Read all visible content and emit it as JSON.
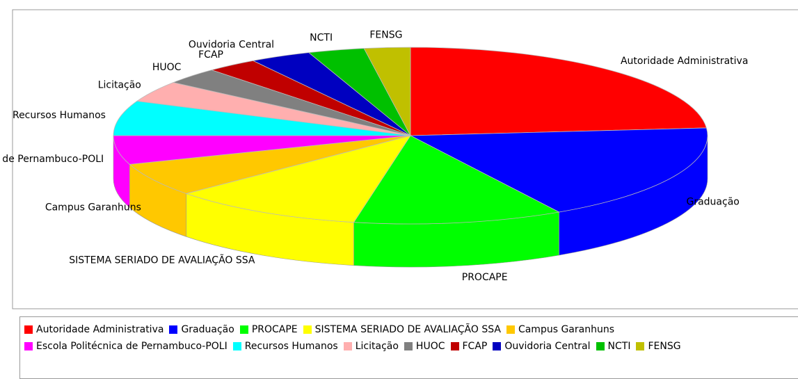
{
  "chart_data": {
    "type": "pie3d",
    "categories": [
      "Autoridade Administrativa",
      "Graduação",
      "PROCAPE",
      "SISTEMA SERIADO DE AVALIAÇÃO SSA",
      "Campus Garanhuns",
      "Escola Politécnica de Pernambuco-POLI",
      "Recursos Humanos",
      "Licitação",
      "HUOC",
      "FCAP",
      "Ouvidoria Central",
      "NCTI",
      "FENSG"
    ],
    "values": [
      85,
      65,
      41,
      38,
      22,
      19,
      23,
      14,
      11,
      10,
      12,
      11,
      9
    ],
    "colors": [
      "#ff0000",
      "#0000ff",
      "#00ff00",
      "#ffff00",
      "#ffc800",
      "#ff00ff",
      "#00ffff",
      "#ffafaf",
      "#808080",
      "#c00000",
      "#0000c0",
      "#00c000",
      "#c0c000"
    ],
    "legend": "bottom"
  }
}
